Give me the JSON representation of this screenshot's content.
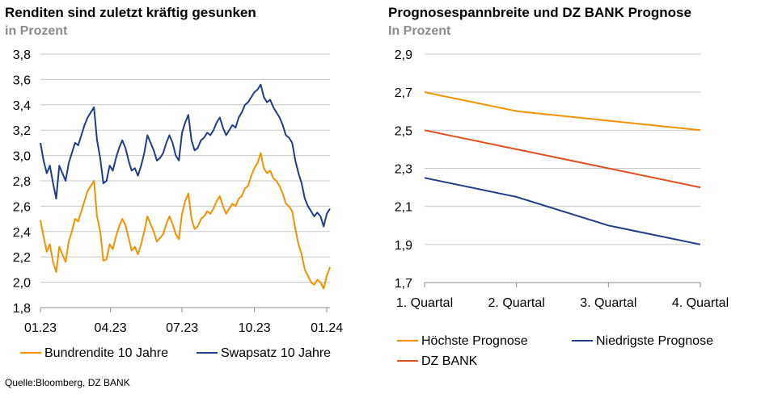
{
  "source": "Quelle:Bloomberg, DZ BANK",
  "chart_data": [
    {
      "type": "line",
      "title": "Renditen sind zuletzt kräftig gesunken",
      "subtitle": "in Prozent",
      "xlabel": "",
      "ylabel": "",
      "ylim": [
        1.8,
        3.8
      ],
      "yticks": [
        "1,8",
        "2,0",
        "2,2",
        "2,4",
        "2,6",
        "2,8",
        "3,0",
        "3,2",
        "3,4",
        "3,6",
        "3,8"
      ],
      "xlim": [
        "2023-01-02",
        "2024-01-05"
      ],
      "xticks": [
        {
          "date": "2023-01-02",
          "label": "01.23"
        },
        {
          "date": "2023-04-01",
          "label": "04.23"
        },
        {
          "date": "2023-07-01",
          "label": "07.23"
        },
        {
          "date": "2023-10-01",
          "label": "10.23"
        },
        {
          "date": "2024-01-01",
          "label": "01.24"
        }
      ],
      "grid": true,
      "legend": "bottom",
      "colors": {
        "Bundrendite 10 Jahre": "#f39200",
        "Swapsatz 10 Jahre": "#1f3c88"
      },
      "series": [
        {
          "name": "Bundrendite 10 Jahre",
          "color": "#f39200",
          "x": [
            "2023-01-02",
            "2023-01-06",
            "2023-01-10",
            "2023-01-14",
            "2023-01-18",
            "2023-01-22",
            "2023-01-26",
            "2023-01-30",
            "2023-02-03",
            "2023-02-07",
            "2023-02-11",
            "2023-02-15",
            "2023-02-19",
            "2023-02-23",
            "2023-02-27",
            "2023-03-03",
            "2023-03-07",
            "2023-03-11",
            "2023-03-15",
            "2023-03-19",
            "2023-03-23",
            "2023-03-27",
            "2023-03-31",
            "2023-04-04",
            "2023-04-08",
            "2023-04-12",
            "2023-04-16",
            "2023-04-20",
            "2023-04-24",
            "2023-04-28",
            "2023-05-02",
            "2023-05-06",
            "2023-05-10",
            "2023-05-14",
            "2023-05-18",
            "2023-05-22",
            "2023-05-26",
            "2023-05-30",
            "2023-06-03",
            "2023-06-07",
            "2023-06-11",
            "2023-06-15",
            "2023-06-19",
            "2023-06-23",
            "2023-06-27",
            "2023-07-01",
            "2023-07-05",
            "2023-07-09",
            "2023-07-13",
            "2023-07-17",
            "2023-07-21",
            "2023-07-25",
            "2023-07-29",
            "2023-08-02",
            "2023-08-06",
            "2023-08-10",
            "2023-08-14",
            "2023-08-18",
            "2023-08-22",
            "2023-08-26",
            "2023-08-30",
            "2023-09-03",
            "2023-09-07",
            "2023-09-11",
            "2023-09-15",
            "2023-09-19",
            "2023-09-23",
            "2023-09-27",
            "2023-10-01",
            "2023-10-05",
            "2023-10-09",
            "2023-10-13",
            "2023-10-17",
            "2023-10-21",
            "2023-10-25",
            "2023-10-29",
            "2023-11-02",
            "2023-11-06",
            "2023-11-10",
            "2023-11-14",
            "2023-11-18",
            "2023-11-22",
            "2023-11-26",
            "2023-11-30",
            "2023-12-04",
            "2023-12-08",
            "2023-12-12",
            "2023-12-16",
            "2023-12-20",
            "2023-12-24",
            "2023-12-28",
            "2024-01-01",
            "2024-01-05"
          ],
          "y": [
            2.49,
            2.36,
            2.24,
            2.3,
            2.16,
            2.08,
            2.28,
            2.22,
            2.16,
            2.32,
            2.4,
            2.5,
            2.48,
            2.56,
            2.64,
            2.72,
            2.76,
            2.8,
            2.52,
            2.4,
            2.17,
            2.18,
            2.3,
            2.26,
            2.36,
            2.44,
            2.5,
            2.45,
            2.35,
            2.25,
            2.28,
            2.22,
            2.3,
            2.4,
            2.52,
            2.46,
            2.4,
            2.32,
            2.35,
            2.38,
            2.46,
            2.52,
            2.46,
            2.38,
            2.34,
            2.54,
            2.64,
            2.7,
            2.5,
            2.42,
            2.44,
            2.5,
            2.52,
            2.56,
            2.54,
            2.58,
            2.64,
            2.68,
            2.6,
            2.54,
            2.58,
            2.62,
            2.6,
            2.66,
            2.68,
            2.74,
            2.76,
            2.84,
            2.9,
            2.94,
            3.02,
            2.9,
            2.86,
            2.88,
            2.82,
            2.8,
            2.76,
            2.7,
            2.62,
            2.6,
            2.56,
            2.42,
            2.3,
            2.22,
            2.1,
            2.05,
            2.0,
            1.98,
            2.02,
            2.0,
            1.95,
            2.05,
            2.12
          ]
        },
        {
          "name": "Swapsatz 10 Jahre",
          "color": "#1f3c88",
          "x": [
            "2023-01-02",
            "2023-01-06",
            "2023-01-10",
            "2023-01-14",
            "2023-01-18",
            "2023-01-22",
            "2023-01-26",
            "2023-01-30",
            "2023-02-03",
            "2023-02-07",
            "2023-02-11",
            "2023-02-15",
            "2023-02-19",
            "2023-02-23",
            "2023-02-27",
            "2023-03-03",
            "2023-03-07",
            "2023-03-11",
            "2023-03-15",
            "2023-03-19",
            "2023-03-23",
            "2023-03-27",
            "2023-03-31",
            "2023-04-04",
            "2023-04-08",
            "2023-04-12",
            "2023-04-16",
            "2023-04-20",
            "2023-04-24",
            "2023-04-28",
            "2023-05-02",
            "2023-05-06",
            "2023-05-10",
            "2023-05-14",
            "2023-05-18",
            "2023-05-22",
            "2023-05-26",
            "2023-05-30",
            "2023-06-03",
            "2023-06-07",
            "2023-06-11",
            "2023-06-15",
            "2023-06-19",
            "2023-06-23",
            "2023-06-27",
            "2023-07-01",
            "2023-07-05",
            "2023-07-09",
            "2023-07-13",
            "2023-07-17",
            "2023-07-21",
            "2023-07-25",
            "2023-07-29",
            "2023-08-02",
            "2023-08-06",
            "2023-08-10",
            "2023-08-14",
            "2023-08-18",
            "2023-08-22",
            "2023-08-26",
            "2023-08-30",
            "2023-09-03",
            "2023-09-07",
            "2023-09-11",
            "2023-09-15",
            "2023-09-19",
            "2023-09-23",
            "2023-09-27",
            "2023-10-01",
            "2023-10-05",
            "2023-10-09",
            "2023-10-13",
            "2023-10-17",
            "2023-10-21",
            "2023-10-25",
            "2023-10-29",
            "2023-11-02",
            "2023-11-06",
            "2023-11-10",
            "2023-11-14",
            "2023-11-18",
            "2023-11-22",
            "2023-11-26",
            "2023-11-30",
            "2023-12-04",
            "2023-12-08",
            "2023-12-12",
            "2023-12-16",
            "2023-12-20",
            "2023-12-24",
            "2023-12-28",
            "2024-01-01",
            "2024-01-05"
          ],
          "y": [
            3.1,
            2.96,
            2.86,
            2.92,
            2.78,
            2.66,
            2.92,
            2.86,
            2.8,
            2.94,
            3.02,
            3.1,
            3.08,
            3.16,
            3.24,
            3.3,
            3.34,
            3.38,
            3.12,
            2.98,
            2.78,
            2.8,
            2.92,
            2.88,
            2.98,
            3.06,
            3.12,
            3.06,
            2.96,
            2.88,
            2.9,
            2.84,
            2.92,
            3.02,
            3.16,
            3.1,
            3.04,
            2.96,
            2.98,
            3.02,
            3.1,
            3.16,
            3.1,
            3.0,
            2.96,
            3.18,
            3.26,
            3.32,
            3.12,
            3.04,
            3.06,
            3.12,
            3.14,
            3.18,
            3.16,
            3.2,
            3.26,
            3.3,
            3.22,
            3.16,
            3.2,
            3.24,
            3.22,
            3.3,
            3.34,
            3.4,
            3.42,
            3.46,
            3.5,
            3.52,
            3.56,
            3.46,
            3.42,
            3.44,
            3.38,
            3.34,
            3.3,
            3.24,
            3.16,
            3.14,
            3.1,
            2.96,
            2.86,
            2.78,
            2.66,
            2.6,
            2.56,
            2.52,
            2.55,
            2.52,
            2.44,
            2.54,
            2.58
          ]
        }
      ]
    },
    {
      "type": "line",
      "title": "Prognosespannbreite und DZ BANK Prognose",
      "subtitle": "In Prozent",
      "xlabel": "",
      "ylabel": "",
      "categories": [
        "1. Quartal",
        "2. Quartal",
        "3. Quartal",
        "4. Quartal"
      ],
      "ylim": [
        1.7,
        2.9
      ],
      "yticks": [
        "1,7",
        "1,9",
        "2,1",
        "2,3",
        "2,5",
        "2,7",
        "2,9"
      ],
      "grid": true,
      "legend": "bottom",
      "colors": {
        "Höchste Prognose": "#f39200",
        "Niedrigste Prognose": "#1f3c88",
        "DZ BANK": "#e0501e"
      },
      "series": [
        {
          "name": "Höchste Prognose",
          "color": "#f39200",
          "values": [
            2.7,
            2.6,
            2.55,
            2.5
          ]
        },
        {
          "name": "Niedrigste Prognose",
          "color": "#1f3c88",
          "values": [
            2.25,
            2.15,
            2.0,
            1.9
          ]
        },
        {
          "name": "DZ BANK",
          "color": "#e0501e",
          "values": [
            2.5,
            2.4,
            2.3,
            2.2
          ]
        }
      ]
    }
  ]
}
